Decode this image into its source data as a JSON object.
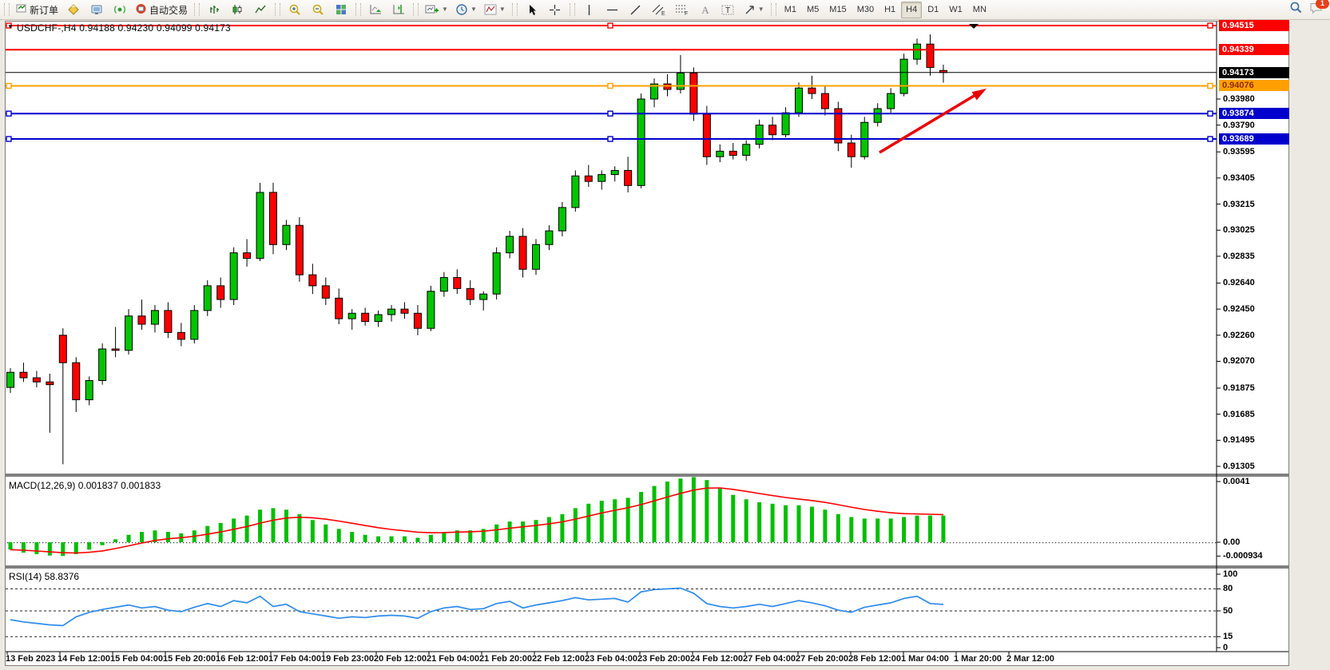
{
  "toolbar": {
    "new_order_label": "新订单",
    "auto_trading_label": "自动交易",
    "timeframes": [
      "M1",
      "M5",
      "M15",
      "M30",
      "H1",
      "H4",
      "D1",
      "W1",
      "MN"
    ],
    "active_timeframe": "H4",
    "notification_badge": "1"
  },
  "chart": {
    "title": "USDCHF-,H4  0.94188 0.94230 0.94099 0.94173",
    "macd_label": "MACD(12,26,9) 0.001837 0.001833",
    "rsi_label": "RSI(14) 58.8376"
  },
  "chart_data": {
    "type": "candlestick",
    "symbol": "USDCHF",
    "timeframe": "H4",
    "title": "USDCHF-,H4",
    "ohlc_display": {
      "open": "0.94188",
      "high": "0.94230",
      "low": "0.94099",
      "close": "0.94173"
    },
    "ylim": [
      0.91305,
      0.94515
    ],
    "colors": {
      "bull": "#00C400",
      "bear": "#FF0000",
      "wick": "#000000",
      "arrow": "#E80000"
    },
    "candles": [
      [
        0.9188,
        0.9202,
        0.9184,
        0.9199
      ],
      [
        0.9199,
        0.9206,
        0.9192,
        0.9195
      ],
      [
        0.9195,
        0.92,
        0.9188,
        0.9192
      ],
      [
        0.9192,
        0.9198,
        0.9155,
        0.919
      ],
      [
        0.9226,
        0.9231,
        0.9132,
        0.9206
      ],
      [
        0.9206,
        0.921,
        0.917,
        0.9179
      ],
      [
        0.9179,
        0.9196,
        0.9175,
        0.9193
      ],
      [
        0.9193,
        0.922,
        0.919,
        0.9216
      ],
      [
        0.9216,
        0.9232,
        0.921,
        0.9215
      ],
      [
        0.9215,
        0.9245,
        0.9212,
        0.924
      ],
      [
        0.924,
        0.9252,
        0.923,
        0.9234
      ],
      [
        0.9234,
        0.9248,
        0.9228,
        0.9244
      ],
      [
        0.9244,
        0.925,
        0.9224,
        0.9228
      ],
      [
        0.9228,
        0.9235,
        0.9218,
        0.9223
      ],
      [
        0.9223,
        0.9248,
        0.922,
        0.9244
      ],
      [
        0.9244,
        0.9266,
        0.924,
        0.9262
      ],
      [
        0.9262,
        0.9268,
        0.9246,
        0.9252
      ],
      [
        0.9252,
        0.929,
        0.9248,
        0.9286
      ],
      [
        0.9286,
        0.9296,
        0.9276,
        0.9282
      ],
      [
        0.9282,
        0.9337,
        0.928,
        0.933
      ],
      [
        0.933,
        0.9337,
        0.9285,
        0.9292
      ],
      [
        0.9292,
        0.931,
        0.9288,
        0.9306
      ],
      [
        0.9306,
        0.9312,
        0.9265,
        0.927
      ],
      [
        0.927,
        0.9278,
        0.9256,
        0.9262
      ],
      [
        0.9262,
        0.9268,
        0.9248,
        0.9253
      ],
      [
        0.9253,
        0.926,
        0.9234,
        0.9238
      ],
      [
        0.9238,
        0.9245,
        0.923,
        0.9242
      ],
      [
        0.9242,
        0.9246,
        0.9233,
        0.9236
      ],
      [
        0.9236,
        0.9244,
        0.9232,
        0.9241
      ],
      [
        0.9241,
        0.9248,
        0.9236,
        0.9245
      ],
      [
        0.9245,
        0.925,
        0.9238,
        0.9242
      ],
      [
        0.9242,
        0.9248,
        0.9226,
        0.9231
      ],
      [
        0.9231,
        0.9262,
        0.9229,
        0.9258
      ],
      [
        0.9258,
        0.9272,
        0.9254,
        0.9268
      ],
      [
        0.9268,
        0.9274,
        0.9256,
        0.926
      ],
      [
        0.926,
        0.9266,
        0.9248,
        0.9252
      ],
      [
        0.9252,
        0.9258,
        0.9244,
        0.9256
      ],
      [
        0.9256,
        0.929,
        0.9252,
        0.9286
      ],
      [
        0.9286,
        0.9302,
        0.9282,
        0.9298
      ],
      [
        0.9298,
        0.9304,
        0.9268,
        0.9274
      ],
      [
        0.9274,
        0.9296,
        0.927,
        0.9292
      ],
      [
        0.9292,
        0.9306,
        0.9288,
        0.9302
      ],
      [
        0.9302,
        0.9323,
        0.9298,
        0.9319
      ],
      [
        0.9319,
        0.9346,
        0.9316,
        0.9342
      ],
      [
        0.9342,
        0.935,
        0.9334,
        0.9338
      ],
      [
        0.9338,
        0.9346,
        0.9332,
        0.9343
      ],
      [
        0.9343,
        0.9349,
        0.9338,
        0.9346
      ],
      [
        0.9346,
        0.9356,
        0.933,
        0.9335
      ],
      [
        0.9335,
        0.9402,
        0.9333,
        0.9398
      ],
      [
        0.9398,
        0.9413,
        0.9392,
        0.9409
      ],
      [
        0.9409,
        0.9416,
        0.94,
        0.9405
      ],
      [
        0.9405,
        0.943,
        0.9402,
        0.9417
      ],
      [
        0.9417,
        0.9421,
        0.9382,
        0.9387
      ],
      [
        0.9387,
        0.9393,
        0.935,
        0.9356
      ],
      [
        0.9356,
        0.9365,
        0.9352,
        0.936
      ],
      [
        0.936,
        0.9366,
        0.9354,
        0.9357
      ],
      [
        0.9357,
        0.9368,
        0.9353,
        0.9365
      ],
      [
        0.9365,
        0.9383,
        0.9362,
        0.9379
      ],
      [
        0.9379,
        0.9385,
        0.9368,
        0.9372
      ],
      [
        0.9372,
        0.9392,
        0.937,
        0.9388
      ],
      [
        0.9388,
        0.941,
        0.9385,
        0.9406
      ],
      [
        0.9406,
        0.9415,
        0.9398,
        0.9402
      ],
      [
        0.9402,
        0.9408,
        0.9386,
        0.9391
      ],
      [
        0.9391,
        0.9396,
        0.936,
        0.9366
      ],
      [
        0.9366,
        0.9372,
        0.9348,
        0.9356
      ],
      [
        0.9356,
        0.9385,
        0.9354,
        0.9381
      ],
      [
        0.9381,
        0.9395,
        0.9378,
        0.9391
      ],
      [
        0.9391,
        0.9406,
        0.9388,
        0.9402
      ],
      [
        0.9402,
        0.9431,
        0.94,
        0.9427
      ],
      [
        0.9427,
        0.9442,
        0.9423,
        0.9438
      ],
      [
        0.9438,
        0.9445,
        0.9415,
        0.9421
      ],
      [
        0.94188,
        0.9423,
        0.94099,
        0.94173
      ]
    ],
    "x_labels": [
      "13 Feb 2023",
      "14 Feb 12:00",
      "15 Feb 04:00",
      "15 Feb 20:00",
      "16 Feb 12:00",
      "17 Feb 04:00",
      "19 Feb 23:00",
      "20 Feb 12:00",
      "21 Feb 04:00",
      "21 Feb 20:00",
      "22 Feb 12:00",
      "23 Feb 04:00",
      "23 Feb 20:00",
      "24 Feb 12:00",
      "27 Feb 04:00",
      "27 Feb 20:00",
      "28 Feb 12:00",
      "1 Mar 04:00",
      "1 Mar 20:00",
      "2 Mar 12:00"
    ],
    "price_ticks": [
      0.9398,
      0.9379,
      0.93595,
      0.93405,
      0.93215,
      0.93025,
      0.92835,
      0.9264,
      0.9245,
      0.9226,
      0.9207,
      0.91875,
      0.91685,
      0.91495,
      0.91305
    ],
    "levels": [
      {
        "price": 0.94515,
        "label": "0.94515",
        "color": "#FF0000",
        "text_color": "#FFFFFF",
        "selected": true,
        "kind": "hline"
      },
      {
        "price": 0.94339,
        "label": "0.94339",
        "color": "#FF0000",
        "text_color": "#FFFFFF",
        "selected": false,
        "kind": "hline"
      },
      {
        "price": 0.94173,
        "label": "0.94173",
        "color": "#000000",
        "text_color": "#FFFFFF",
        "selected": false,
        "kind": "current-price"
      },
      {
        "price": 0.94076,
        "label": "0.94076",
        "color": "#FFA000",
        "text_color": "#8F2B00",
        "selected": true,
        "kind": "hline"
      },
      {
        "price": 0.93874,
        "label": "0.93874",
        "color": "#0000CC",
        "text_color": "#FFFFFF",
        "selected": true,
        "kind": "hline"
      },
      {
        "price": 0.93689,
        "label": "0.93689",
        "color": "#0000CC",
        "text_color": "#FFFFFF",
        "selected": true,
        "kind": "hline"
      }
    ],
    "indicators": [
      {
        "name": "MACD",
        "params": "12,26,9",
        "label": "MACD(12,26,9) 0.001837 0.001833",
        "histogram_color": "#00BE00",
        "signal_color": "#FF0000",
        "signal_period": 9,
        "axis": [
          {
            "label": "0.0041",
            "value": 0.0041
          },
          {
            "label": "0.00",
            "value": 0
          },
          {
            "label": "-0.000934",
            "value": -0.000934
          }
        ],
        "histogram": [
          -0.0005,
          -0.0007,
          -0.0008,
          -0.0009,
          -0.00093,
          -0.0008,
          -0.0005,
          -0.0002,
          0.0002,
          0.0005,
          0.0007,
          0.0008,
          0.0007,
          0.0006,
          0.0008,
          0.0011,
          0.0013,
          0.0016,
          0.0018,
          0.0022,
          0.0023,
          0.0022,
          0.0019,
          0.0015,
          0.0012,
          0.0009,
          0.0007,
          0.0005,
          0.0004,
          0.0004,
          0.0004,
          0.0003,
          0.0005,
          0.0007,
          0.0008,
          0.0008,
          0.0009,
          0.0012,
          0.0014,
          0.0014,
          0.0015,
          0.0017,
          0.0019,
          0.0023,
          0.0026,
          0.0028,
          0.0029,
          0.003,
          0.0034,
          0.0038,
          0.0041,
          0.0043,
          0.0044,
          0.0042,
          0.0037,
          0.0032,
          0.0029,
          0.0027,
          0.0026,
          0.0025,
          0.0025,
          0.0024,
          0.0022,
          0.0019,
          0.0017,
          0.0016,
          0.0016,
          0.0016,
          0.0017,
          0.0018,
          0.0018,
          0.0018
        ]
      },
      {
        "name": "RSI",
        "params": "14",
        "label": "RSI(14) 58.8376",
        "line_color": "#2D8CEB",
        "axis": [
          {
            "label": "100",
            "value": 100
          },
          {
            "label": "80",
            "value": 80,
            "dashed": true
          },
          {
            "label": "50",
            "value": 50,
            "dashed": true
          },
          {
            "label": "15",
            "value": 15,
            "dashed": true
          },
          {
            "label": "0",
            "value": 0
          }
        ],
        "values": [
          38,
          35,
          33,
          31,
          30,
          42,
          48,
          52,
          55,
          58,
          54,
          56,
          51,
          49,
          55,
          60,
          56,
          64,
          61,
          70,
          56,
          59,
          49,
          46,
          43,
          40,
          42,
          41,
          43,
          44,
          43,
          40,
          49,
          54,
          56,
          52,
          53,
          60,
          63,
          54,
          58,
          61,
          64,
          68,
          65,
          66,
          67,
          62,
          76,
          79,
          80,
          81,
          74,
          60,
          56,
          54,
          56,
          59,
          56,
          60,
          64,
          61,
          57,
          51,
          48,
          55,
          58,
          61,
          67,
          70,
          60,
          58.8
        ]
      }
    ],
    "annotations": {
      "trend_arrow": {
        "color": "#E80000",
        "direction": "up-right"
      }
    }
  }
}
